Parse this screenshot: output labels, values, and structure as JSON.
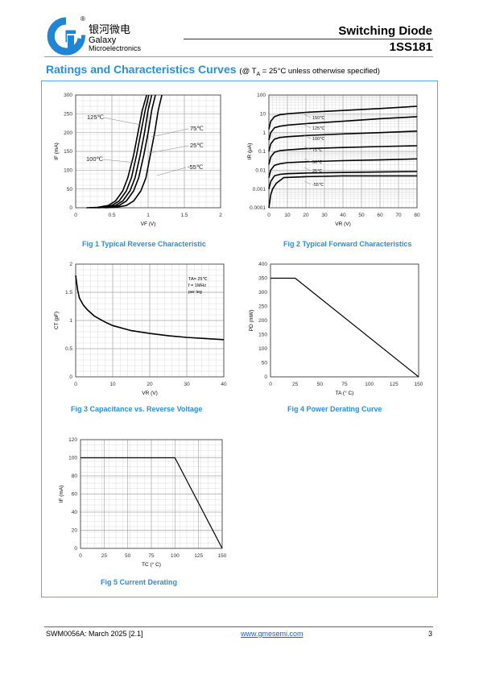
{
  "header": {
    "title": "Switching Diode",
    "part": "1SS181",
    "brand_cn": "银河微电",
    "brand_en1": "Galaxy",
    "brand_en2": "Microelectronics",
    "brand_reg": "®",
    "brand_color": "#1f86d6"
  },
  "section": {
    "title": "Ratings and Characteristics Curves",
    "cond_pre": "(@ T",
    "cond_sub": "A",
    "cond_post": " = 25°C unless otherwise specified)"
  },
  "footer": {
    "doc": "SWM0056A: March 2025 [2.1]",
    "url": "www.gmesemi.com",
    "page": "3"
  },
  "chart_data": [
    {
      "type": "line",
      "caption": "Fig 1    Typical Reverse Characteristic",
      "xlabel": "VF (V)",
      "ylabel": "IF (mA)",
      "xlim": [
        0,
        2
      ],
      "ylim": [
        0,
        300
      ],
      "xticks": [
        0,
        0.5,
        1,
        1.5,
        2
      ],
      "yticks": [
        0,
        50,
        100,
        150,
        200,
        250,
        300
      ],
      "grid": true,
      "series": [
        {
          "name": "125℃",
          "x": [
            0.15,
            0.3,
            0.45,
            0.55,
            0.65,
            0.72,
            0.8,
            0.86,
            0.92,
            0.98
          ],
          "y": [
            0,
            1,
            6,
            18,
            45,
            80,
            140,
            200,
            260,
            300
          ]
        },
        {
          "name": "100℃",
          "x": [
            0.2,
            0.35,
            0.5,
            0.6,
            0.7,
            0.77,
            0.84,
            0.9,
            0.96,
            1.01
          ],
          "y": [
            0,
            1,
            6,
            18,
            45,
            80,
            140,
            200,
            260,
            300
          ]
        },
        {
          "name": "75℃",
          "x": [
            0.25,
            0.4,
            0.55,
            0.65,
            0.75,
            0.82,
            0.89,
            0.95,
            1.0,
            1.05
          ],
          "y": [
            0,
            1,
            6,
            18,
            45,
            80,
            140,
            200,
            260,
            300
          ]
        },
        {
          "name": "25℃",
          "x": [
            0.3,
            0.45,
            0.6,
            0.7,
            0.8,
            0.87,
            0.94,
            1.0,
            1.05,
            1.1
          ],
          "y": [
            0,
            1,
            6,
            18,
            45,
            80,
            140,
            200,
            260,
            300
          ]
        },
        {
          "name": "-55℃",
          "x": [
            0.4,
            0.55,
            0.7,
            0.8,
            0.9,
            0.97,
            1.03,
            1.09,
            1.14,
            1.19
          ],
          "y": [
            0,
            1,
            6,
            18,
            45,
            80,
            140,
            200,
            260,
            300
          ]
        }
      ]
    },
    {
      "type": "line",
      "caption": "Fig 2    Typical Forward Characteristics",
      "xlabel": "VR (V)",
      "ylabel": "IR (μA)",
      "xlim": [
        0,
        80
      ],
      "ylim": [
        0.0001,
        100
      ],
      "yscale": "log",
      "xticks": [
        0,
        10,
        20,
        30,
        40,
        50,
        60,
        70,
        80
      ],
      "yticks": [
        0.0001,
        0.001,
        0.01,
        0.1,
        1,
        10,
        100
      ],
      "ytick_labels": [
        "0.0001",
        "0.001",
        "0.01",
        "0.1",
        "1",
        "10",
        "100"
      ],
      "grid": true,
      "series": [
        {
          "name": "150℃",
          "x": [
            0,
            1,
            3,
            6,
            10,
            20,
            40,
            60,
            80
          ],
          "y": [
            1.5,
            4,
            7,
            9,
            10,
            12,
            15,
            19,
            25
          ]
        },
        {
          "name": "125℃",
          "x": [
            0,
            1,
            3,
            6,
            10,
            20,
            40,
            60,
            80
          ],
          "y": [
            0.4,
            1,
            1.8,
            2.2,
            2.5,
            3,
            4,
            5.5,
            7
          ]
        },
        {
          "name": "100℃",
          "x": [
            0,
            1,
            3,
            6,
            10,
            20,
            40,
            60,
            80
          ],
          "y": [
            0.1,
            0.25,
            0.45,
            0.55,
            0.6,
            0.7,
            0.85,
            1.0,
            1.2
          ]
        },
        {
          "name": "75℃",
          "x": [
            0,
            1,
            3,
            6,
            10,
            20,
            40,
            60,
            80
          ],
          "y": [
            0.02,
            0.05,
            0.09,
            0.11,
            0.12,
            0.14,
            0.16,
            0.18,
            0.2
          ]
        },
        {
          "name": "50℃",
          "x": [
            0,
            1,
            3,
            6,
            10,
            20,
            40,
            60,
            80
          ],
          "y": [
            0.004,
            0.01,
            0.018,
            0.022,
            0.025,
            0.028,
            0.032,
            0.035,
            0.04
          ]
        },
        {
          "name": "25℃",
          "x": [
            0,
            1,
            3,
            6,
            10,
            20,
            40,
            60,
            80
          ],
          "y": [
            0.001,
            0.0025,
            0.005,
            0.006,
            0.0065,
            0.007,
            0.0075,
            0.008,
            0.0085
          ]
        },
        {
          "name": "-55℃",
          "x": [
            0,
            0.5,
            1,
            2,
            4,
            8,
            20,
            40,
            80
          ],
          "y": [
            0.0001,
            0.0002,
            0.0005,
            0.001,
            0.002,
            0.004,
            0.0045,
            0.005,
            0.005
          ]
        }
      ]
    },
    {
      "type": "line",
      "caption": "Fig 3    Capacitance vs. Reverse Voltage",
      "xlabel": "VR (V)",
      "ylabel": "CT (pF)",
      "xlim": [
        0,
        40
      ],
      "ylim": [
        0,
        2
      ],
      "xticks": [
        0,
        10,
        20,
        30,
        40
      ],
      "yticks": [
        0,
        0.5,
        1,
        1.5,
        2
      ],
      "ytick_labels": [
        "0",
        "0.5",
        "1",
        "1.5",
        "2"
      ],
      "grid": true,
      "annotation": [
        "TA= 25℃",
        "f = 1MHz",
        "per leg"
      ],
      "series": [
        {
          "name": "CT",
          "x": [
            0,
            0.5,
            1,
            2,
            3,
            5,
            8,
            10,
            15,
            20,
            25,
            30,
            35,
            40
          ],
          "y": [
            1.8,
            1.55,
            1.4,
            1.28,
            1.2,
            1.08,
            0.97,
            0.91,
            0.82,
            0.77,
            0.73,
            0.7,
            0.68,
            0.66
          ]
        }
      ]
    },
    {
      "type": "line",
      "caption": "Fig 4    Power Derating Curve",
      "xlabel": "TA (° C)",
      "ylabel": "PD (mW)",
      "xlim": [
        0,
        150
      ],
      "ylim": [
        0,
        400
      ],
      "xticks": [
        0,
        25,
        50,
        75,
        100,
        125,
        150
      ],
      "yticks": [
        0,
        50,
        100,
        150,
        200,
        250,
        300,
        350,
        400
      ],
      "grid": false,
      "series": [
        {
          "name": "PD",
          "x": [
            0,
            25,
            150
          ],
          "y": [
            350,
            350,
            0
          ]
        }
      ]
    },
    {
      "type": "line",
      "caption": "Fig 5    Current Derating",
      "xlabel": "TC (° C)",
      "ylabel": "IF (mA)",
      "xlim": [
        0,
        150
      ],
      "ylim": [
        0,
        120
      ],
      "xticks": [
        0,
        25,
        50,
        75,
        100,
        125,
        150
      ],
      "yticks": [
        0,
        20,
        40,
        60,
        80,
        100,
        120
      ],
      "grid": true,
      "series": [
        {
          "name": "IF",
          "x": [
            0,
            100,
            150
          ],
          "y": [
            100,
            100,
            0
          ]
        }
      ]
    }
  ]
}
